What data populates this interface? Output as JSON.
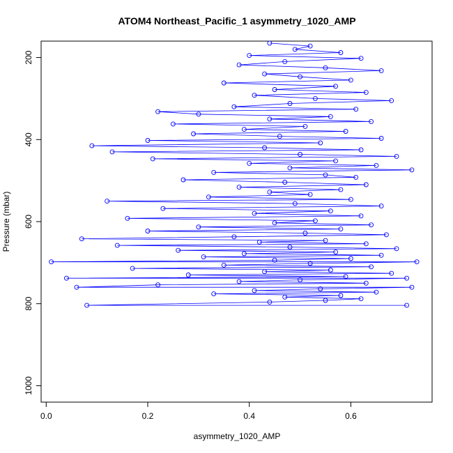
{
  "chart_data": {
    "type": "scatter",
    "title": "ATOM4 Northeast_Pacific_1 asymmetry_1020_AMP",
    "xlabel": "asymmetry_1020_AMP",
    "ylabel": "Pressure (mbar)",
    "xlim": [
      -0.01,
      0.76
    ],
    "ylim": [
      1040,
      160
    ],
    "y_reversed": true,
    "x_ticks": [
      0.0,
      0.2,
      0.4,
      0.6
    ],
    "x_tick_labels": [
      "0.0",
      "0.2",
      "0.4",
      "0.6"
    ],
    "y_ticks": [
      200,
      400,
      600,
      800,
      1000
    ],
    "y_tick_labels": [
      "200",
      "400",
      "600",
      "800",
      "1000"
    ],
    "grid": false,
    "marker": "open-circle",
    "connected": true,
    "color": "#0000ff",
    "series": [
      {
        "points": [
          [
            0.44,
            165
          ],
          [
            0.52,
            172
          ],
          [
            0.49,
            180
          ],
          [
            0.58,
            188
          ],
          [
            0.4,
            195
          ],
          [
            0.62,
            202
          ],
          [
            0.47,
            210
          ],
          [
            0.38,
            218
          ],
          [
            0.55,
            225
          ],
          [
            0.66,
            232
          ],
          [
            0.43,
            240
          ],
          [
            0.5,
            247
          ],
          [
            0.6,
            255
          ],
          [
            0.35,
            262
          ],
          [
            0.57,
            270
          ],
          [
            0.45,
            278
          ],
          [
            0.63,
            285
          ],
          [
            0.41,
            292
          ],
          [
            0.53,
            300
          ],
          [
            0.68,
            305
          ],
          [
            0.48,
            312
          ],
          [
            0.37,
            320
          ],
          [
            0.61,
            326
          ],
          [
            0.22,
            332
          ],
          [
            0.3,
            338
          ],
          [
            0.56,
            344
          ],
          [
            0.44,
            350
          ],
          [
            0.64,
            356
          ],
          [
            0.25,
            362
          ],
          [
            0.51,
            368
          ],
          [
            0.39,
            375
          ],
          [
            0.59,
            380
          ],
          [
            0.29,
            386
          ],
          [
            0.46,
            392
          ],
          [
            0.66,
            397
          ],
          [
            0.2,
            402
          ],
          [
            0.54,
            408
          ],
          [
            0.09,
            415
          ],
          [
            0.43,
            420
          ],
          [
            0.62,
            425
          ],
          [
            0.13,
            430
          ],
          [
            0.5,
            436
          ],
          [
            0.69,
            441
          ],
          [
            0.21,
            447
          ],
          [
            0.57,
            452
          ],
          [
            0.4,
            458
          ],
          [
            0.65,
            463
          ],
          [
            0.48,
            469
          ],
          [
            0.72,
            474
          ],
          [
            0.33,
            480
          ],
          [
            0.55,
            486
          ],
          [
            0.61,
            492
          ],
          [
            0.27,
            498
          ],
          [
            0.47,
            504
          ],
          [
            0.63,
            510
          ],
          [
            0.38,
            516
          ],
          [
            0.58,
            522
          ],
          [
            0.44,
            528
          ],
          [
            0.52,
            534
          ],
          [
            0.32,
            540
          ],
          [
            0.6,
            546
          ],
          [
            0.12,
            550
          ],
          [
            0.49,
            556
          ],
          [
            0.66,
            562
          ],
          [
            0.23,
            568
          ],
          [
            0.56,
            574
          ],
          [
            0.41,
            580
          ],
          [
            0.62,
            586
          ],
          [
            0.16,
            592
          ],
          [
            0.53,
            598
          ],
          [
            0.45,
            603
          ],
          [
            0.64,
            608
          ],
          [
            0.3,
            613
          ],
          [
            0.58,
            618
          ],
          [
            0.2,
            623
          ],
          [
            0.51,
            628
          ],
          [
            0.67,
            632
          ],
          [
            0.37,
            637
          ],
          [
            0.07,
            642
          ],
          [
            0.55,
            646
          ],
          [
            0.42,
            650
          ],
          [
            0.63,
            654
          ],
          [
            0.14,
            658
          ],
          [
            0.48,
            662
          ],
          [
            0.69,
            666
          ],
          [
            0.26,
            670
          ],
          [
            0.57,
            674
          ],
          [
            0.39,
            678
          ],
          [
            0.66,
            682
          ],
          [
            0.31,
            686
          ],
          [
            0.6,
            690
          ],
          [
            0.45,
            694
          ],
          [
            0.01,
            698
          ],
          [
            0.73,
            698
          ],
          [
            0.52,
            702
          ],
          [
            0.35,
            706
          ],
          [
            0.64,
            710
          ],
          [
            0.17,
            714
          ],
          [
            0.56,
            718
          ],
          [
            0.43,
            722
          ],
          [
            0.68,
            726
          ],
          [
            0.28,
            730
          ],
          [
            0.59,
            734
          ],
          [
            0.04,
            738
          ],
          [
            0.71,
            738
          ],
          [
            0.5,
            742
          ],
          [
            0.38,
            746
          ],
          [
            0.63,
            750
          ],
          [
            0.22,
            754
          ],
          [
            0.06,
            760
          ],
          [
            0.72,
            760
          ],
          [
            0.54,
            764
          ],
          [
            0.41,
            768
          ],
          [
            0.65,
            772
          ],
          [
            0.33,
            776
          ],
          [
            0.58,
            780
          ],
          [
            0.47,
            784
          ],
          [
            0.62,
            788
          ],
          [
            0.55,
            792
          ],
          [
            0.44,
            796
          ],
          [
            0.08,
            804
          ],
          [
            0.71,
            804
          ]
        ]
      }
    ]
  }
}
